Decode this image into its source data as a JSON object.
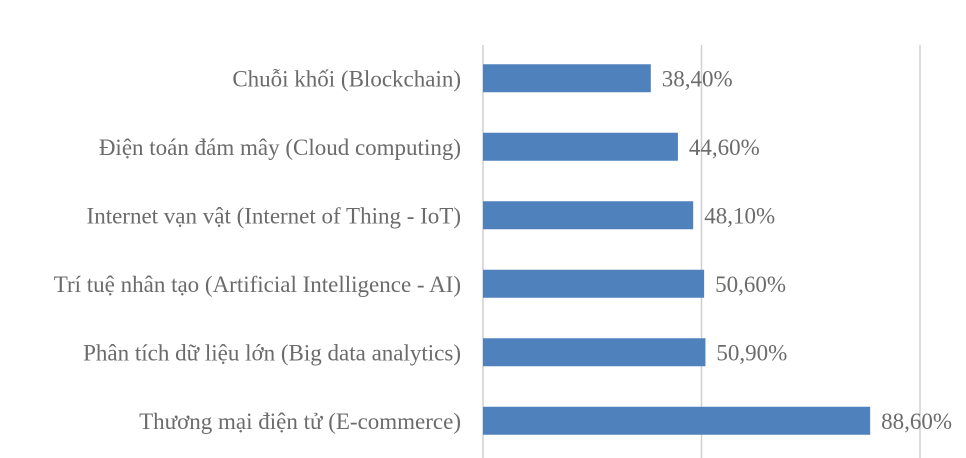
{
  "chart_data": {
    "type": "bar",
    "orientation": "horizontal",
    "categories": [
      "Chuỗi khối (Blockchain)",
      "Điện toán đám mây (Cloud computing)",
      "Internet vạn vật (Internet of Thing - IoT)",
      "Trí tuệ nhân tạo (Artificial Intelligence - AI)",
      "Phân tích dữ liệu lớn (Big data analytics)",
      "Thương mại điện tử (E-commerce)"
    ],
    "values": [
      38.4,
      44.6,
      48.1,
      50.6,
      50.9,
      88.6
    ],
    "value_labels": [
      "38,40%",
      "44,60%",
      "48,10%",
      "50,60%",
      "50,90%",
      "88,60%"
    ],
    "title": "",
    "xlabel": "",
    "ylabel": "",
    "xlim": [
      0,
      100
    ],
    "grid": true,
    "legend": "none",
    "bar_color": "#4f81bd"
  }
}
